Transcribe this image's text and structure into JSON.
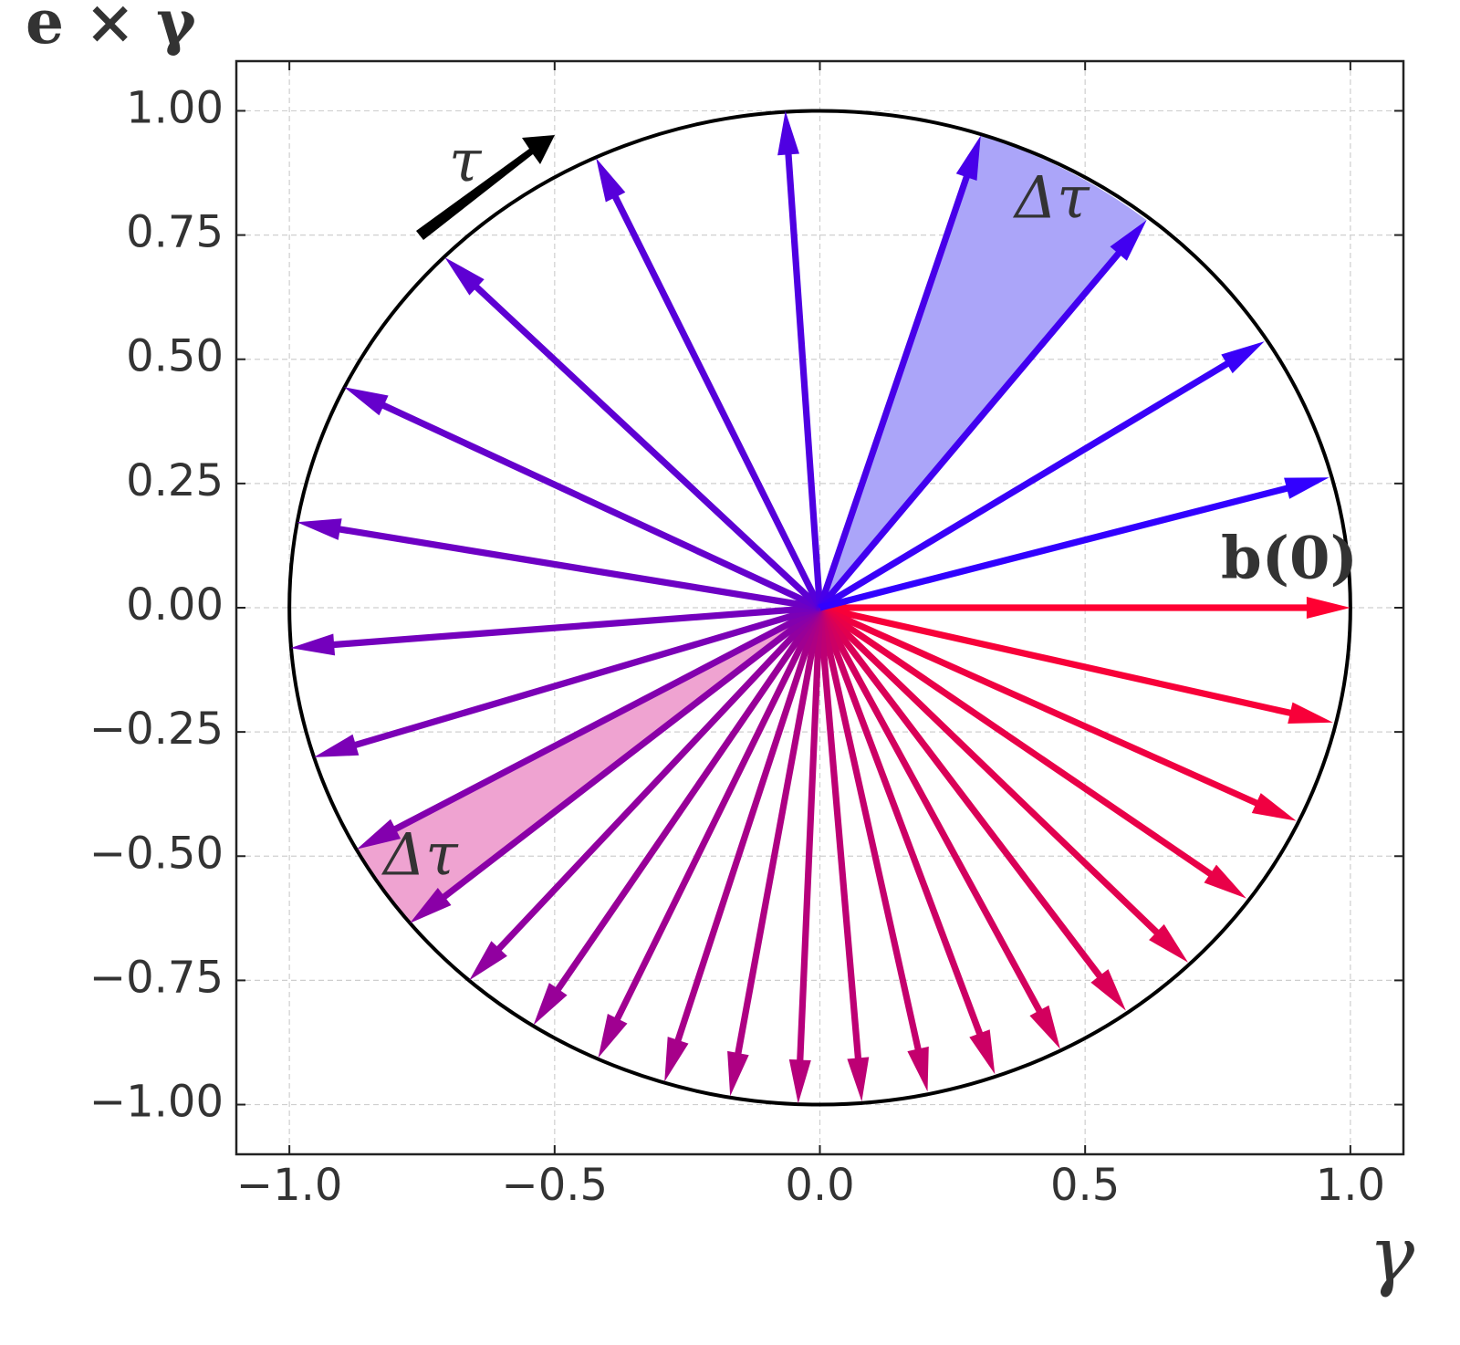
{
  "chart_data": {
    "type": "quiver",
    "x_label": "γ",
    "y_label": "e × γ",
    "annotations": {
      "b0": "b(0)",
      "delta_tau_top": "Δτ",
      "delta_tau_bottom": "Δτ",
      "tau": "τ"
    },
    "u": [
      1.0,
      0.967,
      0.898,
      0.804,
      0.694,
      0.577,
      0.453,
      0.33,
      0.203,
      0.079,
      -0.041,
      -0.169,
      -0.293,
      -0.418,
      -0.54,
      -0.661,
      -0.773,
      -0.873,
      -0.954,
      -0.998,
      -0.986,
      -0.897,
      -0.707,
      -0.422,
      -0.065,
      0.303,
      0.616,
      0.838,
      0.96
    ],
    "v": [
      0.0,
      -0.231,
      -0.429,
      -0.585,
      -0.714,
      -0.811,
      -0.888,
      -0.939,
      -0.974,
      -0.994,
      -0.998,
      -0.983,
      -0.954,
      -0.906,
      -0.84,
      -0.75,
      -0.635,
      -0.486,
      -0.301,
      -0.081,
      0.172,
      0.444,
      0.705,
      0.905,
      1.0,
      0.95,
      0.78,
      0.536,
      0.262
    ],
    "colors": [
      "#ff0032",
      "#f80039",
      "#f00041",
      "#e90048",
      "#e2004f",
      "#da0057",
      "#d3005e",
      "#cc0065",
      "#c4006d",
      "#bd0074",
      "#b6007b",
      "#ae0083",
      "#a7008a",
      "#a00091",
      "#980098",
      "#9100a0",
      "#8a00a7",
      "#8300ae",
      "#7b00b6",
      "#7400bd",
      "#6d00c4",
      "#6500cc",
      "#5e00d3",
      "#5700da",
      "#4f00e2",
      "#4800e9",
      "#4100f0",
      "#3900f8",
      "#3200ff"
    ],
    "wedges": [
      {
        "vectors": [
          25,
          26
        ],
        "color": "#aba5f9"
      },
      {
        "vectors": [
          17,
          16
        ],
        "color": "#efa3d1"
      }
    ],
    "circle": {
      "radius": 1,
      "color": "#000000"
    },
    "xlim": [
      -1.1,
      1.1
    ],
    "ylim": [
      -1.1,
      1.1
    ],
    "xticks": [
      {
        "value": -1.0,
        "label": "−1.0"
      },
      {
        "value": -0.5,
        "label": "−0.5"
      },
      {
        "value": 0.0,
        "label": "0.0"
      },
      0.5,
      {
        "value": 1.0,
        "label": "1.0"
      }
    ],
    "yticks": [
      {
        "value": -1.0,
        "label": "−1.00"
      },
      {
        "value": -0.75,
        "label": "−0.75"
      },
      {
        "value": -0.5,
        "label": "−0.50"
      },
      {
        "value": -0.25,
        "label": "−0.25"
      },
      {
        "value": 0.0,
        "label": "0.00"
      },
      0.25,
      {
        "value": 0.5,
        "label": "0.50"
      },
      0.75,
      {
        "value": 1.0,
        "label": "1.00"
      }
    ],
    "grid": true
  }
}
